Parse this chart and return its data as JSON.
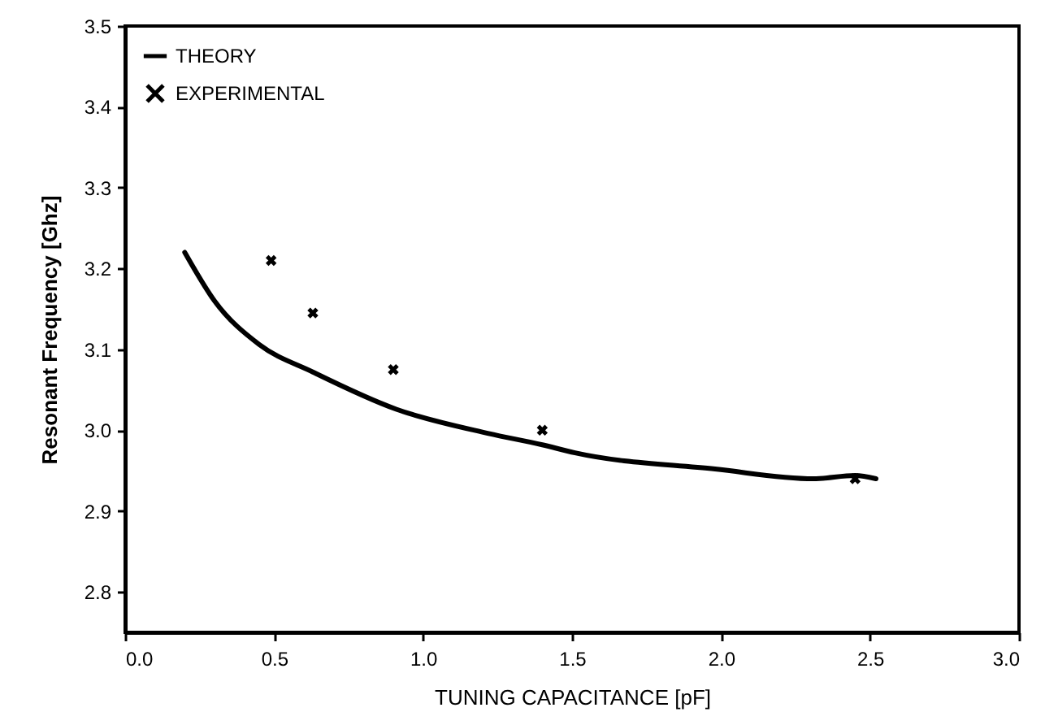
{
  "chart_data": {
    "type": "line",
    "xlabel": "TUNING CAPACITANCE [pF]",
    "ylabel": "Resonant Frequency [Ghz]",
    "xlim": [
      0,
      3
    ],
    "ylim": [
      2.75,
      3.5
    ],
    "xticks": [
      {
        "value": 0,
        "label": "0.0"
      },
      0.5,
      {
        "value": 1,
        "label": "1.0"
      },
      1.5,
      {
        "value": 2,
        "label": "2.0"
      },
      2.5,
      {
        "value": 3,
        "label": "3.0"
      }
    ],
    "yticks": [
      2.8,
      2.9,
      {
        "value": 3,
        "label": "3.0"
      },
      3.1,
      3.2,
      3.3,
      3.4,
      3.5
    ],
    "grid": false,
    "legend": "top left",
    "series": [
      {
        "name": "THEORY",
        "color": "#000000",
        "line_style": "solid",
        "x": [
          0.2,
          0.3,
          0.45,
          0.63,
          0.91,
          1.22,
          1.4,
          1.51,
          1.98,
          2.31,
          2.45,
          2.52
        ],
        "values": [
          3.22,
          3.16,
          3.106,
          3.072,
          3.026,
          2.996,
          2.982,
          2.972,
          2.952,
          2.94,
          2.944,
          2.94
        ]
      },
      {
        "name": "EXPERIMENTAL",
        "type": "scatter",
        "marker": "cross",
        "color": "#000000",
        "x": [
          0.49,
          0.63,
          0.9,
          1.4,
          2.45
        ],
        "values": [
          3.21,
          3.145,
          3.075,
          3.0,
          2.94
        ]
      }
    ]
  }
}
